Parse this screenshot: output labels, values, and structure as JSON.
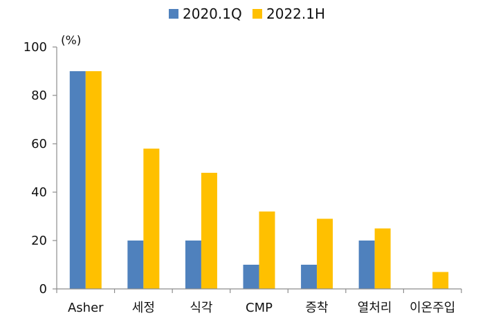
{
  "chart_data": {
    "type": "bar",
    "title": "",
    "xlabel": "",
    "ylabel": "(%)",
    "ylim": [
      0,
      100
    ],
    "yticks": [
      0,
      20,
      40,
      60,
      80,
      100
    ],
    "grid": false,
    "legend_position": "top-center",
    "categories": [
      "Asher",
      "세정",
      "식각",
      "CMP",
      "증착",
      "열처리",
      "이온주입"
    ],
    "series": [
      {
        "name": "2020.1Q",
        "color": "#4F81BD",
        "values": [
          90,
          20,
          20,
          10,
          10,
          20,
          0
        ]
      },
      {
        "name": "2022.1H",
        "color": "#FFC000",
        "values": [
          90,
          58,
          48,
          32,
          29,
          25,
          7
        ]
      }
    ]
  }
}
